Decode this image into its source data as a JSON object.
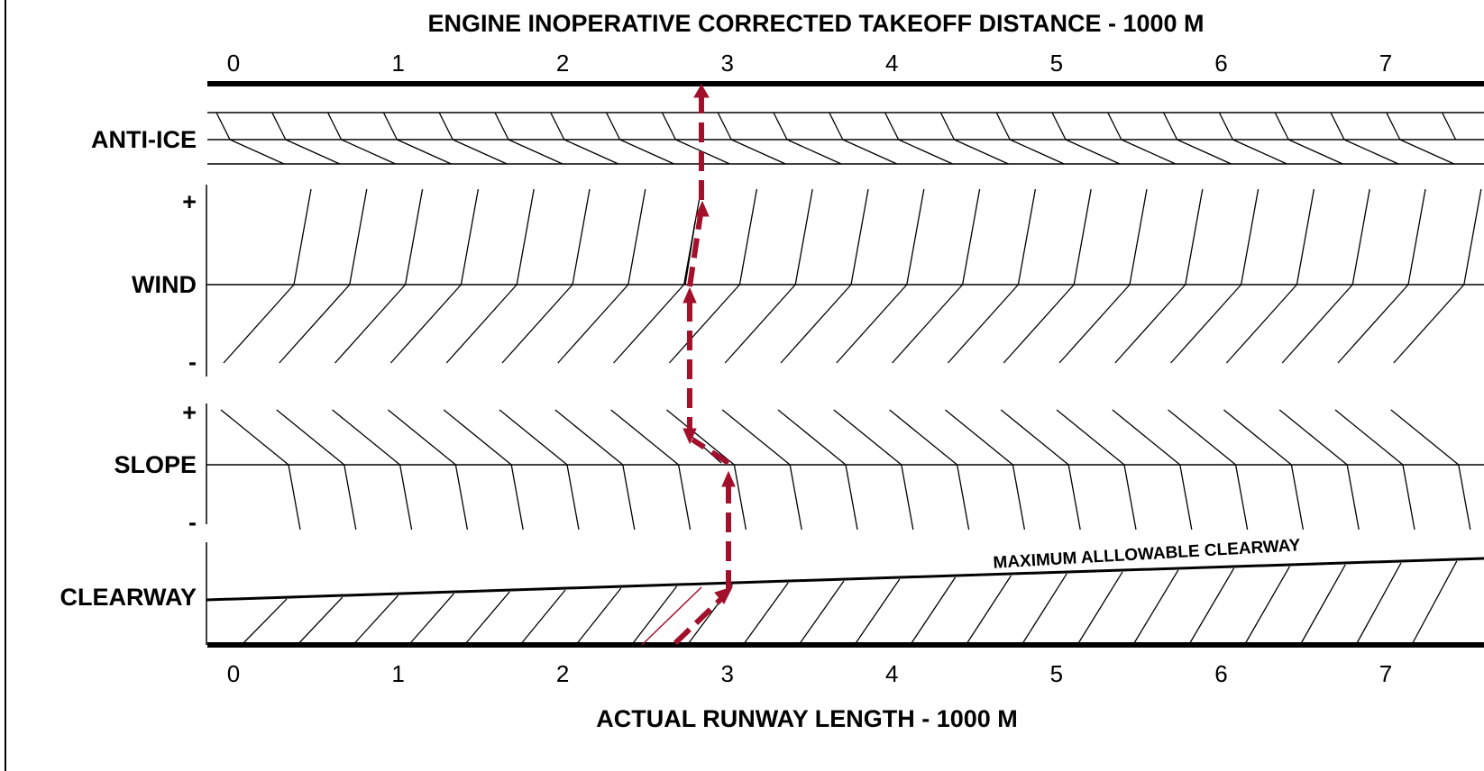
{
  "title": "ENGINE INOPERATIVE CORRECTED TAKEOFF DISTANCE - 1000 M",
  "top_axis": {
    "labels": [
      "0",
      "1",
      "2",
      "3",
      "4",
      "5",
      "6",
      "7"
    ]
  },
  "sections": [
    {
      "label": "ANTI-ICE"
    },
    {
      "label": "WIND",
      "plus": "+",
      "minus": "-"
    },
    {
      "label": "SLOPE",
      "plus": "+",
      "minus": "-"
    },
    {
      "label": "CLEARWAY",
      "annotation": "MAXIMUM ALLLOWABLE CLEARWAY"
    }
  ],
  "bottom_axis": {
    "labels": [
      "0",
      "1",
      "2",
      "3",
      "4",
      "5",
      "6",
      "7"
    ],
    "title": "ACTUAL RUNWAY LENGTH - 1000 M"
  }
}
